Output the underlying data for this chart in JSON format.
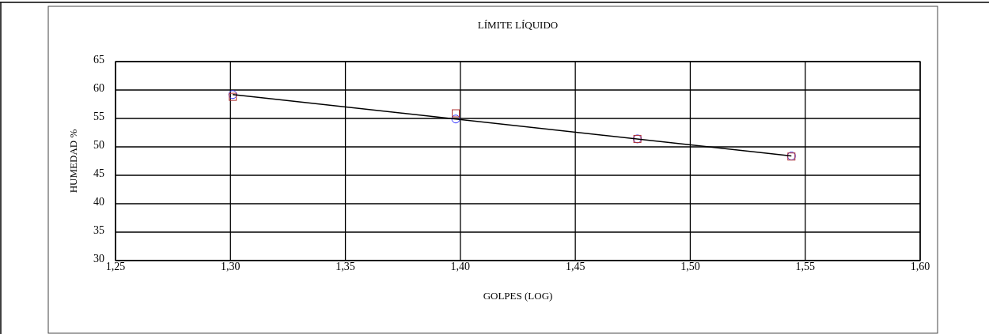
{
  "chart_data": {
    "type": "scatter",
    "title": "LÍMITE LÍQUIDO",
    "xlabel": "GOLPES (LOG)",
    "ylabel": "HUMEDAD %",
    "x": [
      1.301,
      1.398,
      1.477,
      1.544
    ],
    "series": [
      {
        "color": "#3333ff",
        "marker": "circle",
        "values": [
          59.2,
          54.9,
          51.4,
          48.4
        ]
      },
      {
        "color": "#b03030",
        "marker": "square",
        "values": [
          58.8,
          55.9,
          51.4,
          48.3
        ]
      },
      {
        "type": "line",
        "color": "#000000",
        "marker": "none",
        "x": [
          1.301,
          1.544
        ],
        "values": [
          59.2,
          48.4
        ]
      }
    ],
    "xlim": [
      1.25,
      1.6
    ],
    "xticks": [
      {
        "value": 1.25,
        "label": "1,25"
      },
      {
        "value": 1.3,
        "label": "1,30"
      },
      {
        "value": 1.35,
        "label": "1,35"
      },
      {
        "value": 1.4,
        "label": "1,40"
      },
      {
        "value": 1.45,
        "label": "1,45"
      },
      {
        "value": 1.5,
        "label": "1,50"
      },
      {
        "value": 1.55,
        "label": "1,55"
      },
      {
        "value": 1.6,
        "label": "1,60"
      }
    ],
    "ylim": [
      30,
      65
    ],
    "yticks": [
      30,
      35,
      40,
      45,
      50,
      55,
      60,
      65
    ],
    "grid": true
  }
}
